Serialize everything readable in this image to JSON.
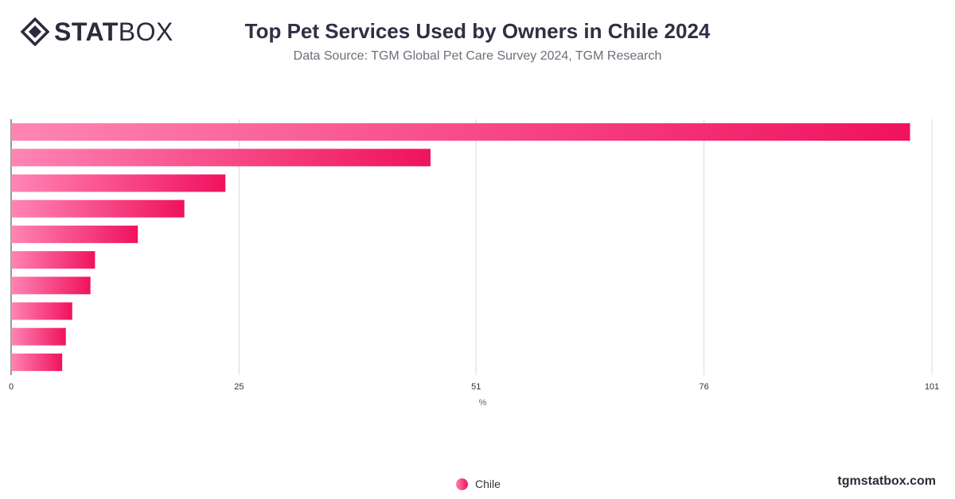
{
  "header": {
    "brand_bold": "STAT",
    "brand_light": "BOX",
    "title": "Top Pet Services Used by Owners in Chile 2024",
    "subtitle": "Data Source: TGM Global Pet Care Survey 2024, TGM Research"
  },
  "footer": {
    "website": "tgmstatbox.com"
  },
  "colors": {
    "bar_start": "#ff85b4",
    "bar_end": "#f0125e",
    "grid": "#d9d9d9",
    "axis_text": "#333333"
  },
  "chart_data": {
    "type": "bar",
    "orientation": "horizontal",
    "categories": [
      "",
      "",
      "",
      "",
      "",
      "",
      "",
      "",
      "",
      ""
    ],
    "series": [
      {
        "name": "Chile",
        "values": [
          98.6,
          46,
          23.5,
          19,
          13.9,
          9.2,
          8.7,
          6.7,
          6,
          5.6
        ]
      }
    ],
    "xlabel": "%",
    "xlim": [
      0,
      101
    ],
    "xticks": [
      0,
      25,
      51,
      76,
      101
    ],
    "grid": true,
    "legend": "bottom-center"
  }
}
